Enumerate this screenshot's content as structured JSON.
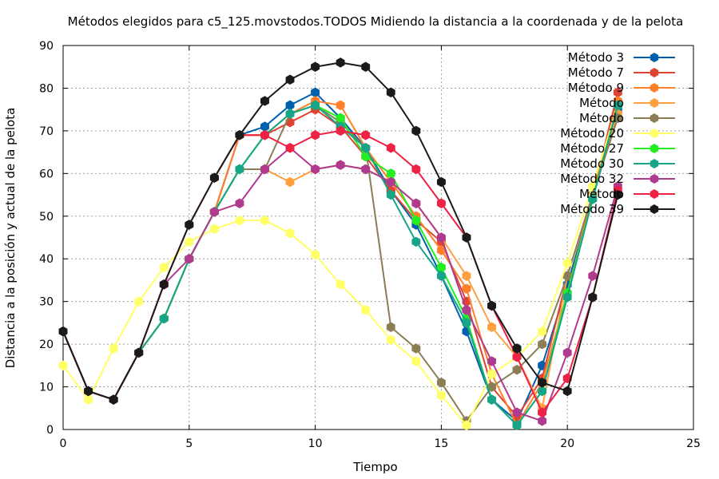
{
  "chart_data": {
    "type": "line",
    "title": "Métodos elegidos para c5_125.movstodos.TODOS Midiendo la distancia a la coordenada y de la pelota",
    "xlabel": "Tiempo",
    "ylabel": "Distancia a la posición y actual de la pelota",
    "xlim": [
      0,
      25
    ],
    "ylim": [
      0,
      90
    ],
    "xticks": [
      0,
      5,
      10,
      15,
      20,
      25
    ],
    "yticks": [
      0,
      10,
      20,
      30,
      40,
      50,
      60,
      70,
      80,
      90
    ],
    "grid": true,
    "legend_position": "top-right",
    "x": [
      0,
      1,
      2,
      3,
      4,
      5,
      6,
      7,
      8,
      9,
      10,
      11,
      12,
      13,
      14,
      15,
      16,
      17,
      18,
      19,
      20,
      21,
      22
    ],
    "series": [
      {
        "name": "Método 3",
        "color": "#0060ad",
        "values": [
          23,
          9,
          7,
          18,
          26,
          40,
          51,
          69,
          71,
          76,
          79,
          73,
          66,
          56,
          48,
          36,
          23,
          7,
          2,
          15,
          34,
          54,
          75
        ]
      },
      {
        "name": "Método 7",
        "color": "#dd4433",
        "values": [
          23,
          9,
          7,
          18,
          26,
          40,
          51,
          69,
          69,
          72,
          75,
          71,
          64,
          56,
          49,
          44,
          30,
          10,
          3,
          12,
          36,
          55,
          79
        ]
      },
      {
        "name": "Método 9",
        "color": "#ff7f2a",
        "values": [
          23,
          9,
          7,
          18,
          26,
          40,
          51,
          69,
          69,
          74,
          77,
          76,
          66,
          58,
          50,
          42,
          33,
          13,
          1,
          11,
          32,
          55,
          77
        ]
      },
      {
        "name": "Método",
        "color": "#ffa040",
        "values": [
          23,
          9,
          7,
          18,
          26,
          40,
          51,
          61,
          61,
          58,
          61,
          62,
          61,
          58,
          53,
          45,
          36,
          24,
          17,
          5,
          36,
          55,
          74
        ]
      },
      {
        "name": "Método",
        "color": "#8b7d54",
        "values": [
          23,
          9,
          7,
          18,
          26,
          40,
          51,
          61,
          61,
          74,
          76,
          72,
          66,
          24,
          19,
          11,
          2,
          10,
          14,
          20,
          36,
          55,
          73
        ]
      },
      {
        "name": "Método 20",
        "color": "#ffff66",
        "values": [
          15,
          7,
          19,
          30,
          38,
          44,
          47,
          49,
          49,
          46,
          41,
          34,
          28,
          21,
          16,
          8,
          1,
          13,
          17,
          23,
          39,
          57,
          76
        ]
      },
      {
        "name": "Método 27",
        "color": "#22ee22",
        "values": [
          23,
          9,
          7,
          18,
          26,
          40,
          51,
          61,
          69,
          74,
          76,
          73,
          64,
          60,
          49,
          38,
          26,
          7,
          1,
          9,
          32,
          54,
          76
        ]
      },
      {
        "name": "Método 30",
        "color": "#17a589",
        "values": [
          23,
          9,
          7,
          18,
          26,
          40,
          51,
          61,
          69,
          74,
          76,
          71,
          66,
          55,
          44,
          36,
          25,
          7,
          1,
          9,
          31,
          54,
          76
        ]
      },
      {
        "name": "Método 32",
        "color": "#b03a8e",
        "values": [
          23,
          9,
          7,
          18,
          34,
          40,
          51,
          53,
          61,
          66,
          61,
          62,
          61,
          58,
          53,
          45,
          28,
          16,
          4,
          2,
          18,
          36,
          57
        ]
      },
      {
        "name": "Método",
        "color": "#ee2244",
        "values": [
          23,
          9,
          7,
          18,
          34,
          48,
          59,
          69,
          69,
          66,
          69,
          70,
          69,
          66,
          61,
          53,
          45,
          29,
          17,
          4,
          12,
          31,
          56
        ]
      },
      {
        "name": "Método 39",
        "color": "#1a1a1a",
        "values": [
          23,
          9,
          7,
          18,
          34,
          48,
          59,
          69,
          77,
          82,
          85,
          86,
          85,
          79,
          70,
          58,
          45,
          29,
          19,
          11,
          9,
          31,
          55
        ]
      }
    ]
  }
}
